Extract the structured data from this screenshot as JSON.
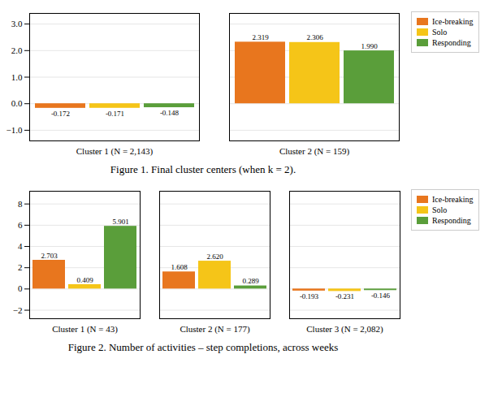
{
  "chart_data": [
    {
      "type": "bar",
      "title": "Figure 1. Final cluster centers (when k = 2).",
      "categories": [
        "Cluster 1 (N = 2,143)",
        "Cluster 2 (N = 159)"
      ],
      "series": [
        {
          "name": "Ice-breaking",
          "color": "#E8761E",
          "values": [
            -0.172,
            2.319
          ],
          "value_labels": [
            "-0.172",
            "2.319"
          ]
        },
        {
          "name": "Solo",
          "color": "#F5C518",
          "values": [
            -0.171,
            2.306
          ],
          "value_labels": [
            "-0.171",
            "2.306"
          ]
        },
        {
          "name": "Responding",
          "color": "#5A9E3A",
          "values": [
            -0.148,
            1.99
          ],
          "value_labels": [
            "-0.148",
            "1.990"
          ]
        }
      ],
      "ylim": [
        -1.4,
        3.4
      ],
      "yticks": [
        -1,
        0,
        1,
        2,
        3
      ],
      "grid": true,
      "data_labels": true,
      "legend": "right"
    },
    {
      "type": "bar",
      "title": "Figure 2. Number of activities – step completions, across weeks",
      "categories": [
        "Cluster 1 (N = 43)",
        "Cluster 2 (N = 177)",
        "Cluster 3 (N = 2,082)"
      ],
      "series": [
        {
          "name": "Ice-breaking",
          "color": "#E8761E",
          "values": [
            2.703,
            1.608,
            -0.193
          ],
          "value_labels": [
            "2.703",
            "1.608",
            "-0.193"
          ]
        },
        {
          "name": "Solo",
          "color": "#F5C518",
          "values": [
            0.409,
            2.62,
            -0.231
          ],
          "value_labels": [
            "0.409",
            "2.620",
            "-0.231"
          ]
        },
        {
          "name": "Responding",
          "color": "#5A9E3A",
          "values": [
            5.901,
            0.289,
            -0.146
          ],
          "value_labels": [
            "5.901",
            "0.289",
            "-0.146"
          ]
        }
      ],
      "ylim": [
        -2.8,
        9.2
      ],
      "yticks": [
        -2,
        0,
        2,
        4,
        6,
        8
      ],
      "grid": true,
      "data_labels": true,
      "legend": "right"
    }
  ]
}
